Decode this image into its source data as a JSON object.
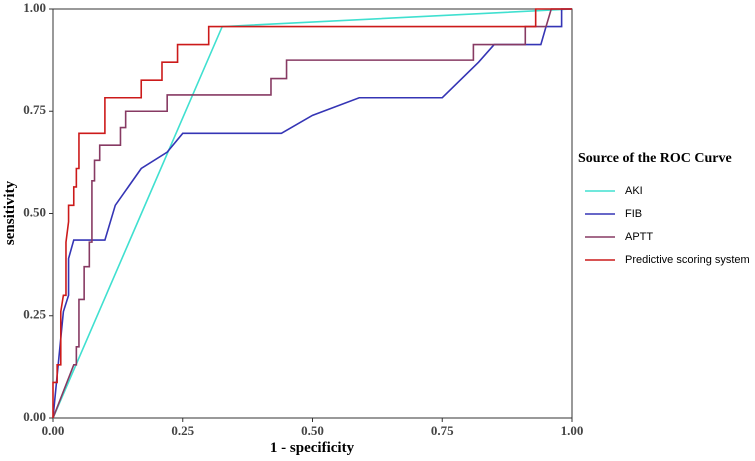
{
  "chart_data": {
    "type": "line",
    "xlabel": "1 - specificity",
    "ylabel": "sensitivity",
    "legend_title": "Source of the ROC Curve",
    "legend": "right",
    "grid": false,
    "xlim": [
      0,
      1
    ],
    "ylim": [
      0,
      1
    ],
    "xticks": [
      {
        "value": 0,
        "label": "0.00"
      },
      0.25,
      {
        "value": 0.5,
        "label": "0.50"
      },
      0.75,
      {
        "value": 1,
        "label": "1.00"
      }
    ],
    "yticks": [
      {
        "value": 0,
        "label": "0.00"
      },
      0.25,
      {
        "value": 0.5,
        "label": "0.50"
      },
      0.75,
      {
        "value": 1,
        "label": "1.00"
      }
    ],
    "series": [
      {
        "name": "AKI",
        "color": "#40e0d0",
        "x": [
          0,
          0.326,
          1
        ],
        "values": [
          0,
          0.957,
          1
        ]
      },
      {
        "name": "FIB",
        "color": "#3535b5",
        "x": [
          0,
          0.01,
          0.02,
          0.03,
          0.03,
          0.04,
          0.1,
          0.12,
          0.17,
          0.22,
          0.25,
          0.44,
          0.5,
          0.59,
          0.75,
          0.82,
          0.85,
          0.94,
          0.95,
          0.98,
          0.98,
          1
        ],
        "values": [
          0,
          0.13,
          0.26,
          0.3,
          0.39,
          0.435,
          0.435,
          0.52,
          0.61,
          0.65,
          0.696,
          0.696,
          0.74,
          0.783,
          0.783,
          0.87,
          0.913,
          0.913,
          0.957,
          0.957,
          1,
          1
        ]
      },
      {
        "name": "APTT",
        "color": "#873a63",
        "x": [
          0,
          0.04,
          0.045,
          0.045,
          0.05,
          0.05,
          0.06,
          0.06,
          0.07,
          0.07,
          0.075,
          0.075,
          0.08,
          0.08,
          0.09,
          0.09,
          0.13,
          0.13,
          0.14,
          0.14,
          0.22,
          0.22,
          0.42,
          0.42,
          0.45,
          0.45,
          0.81,
          0.81,
          0.91,
          0.91,
          0.95,
          0.96,
          1
        ],
        "values": [
          0,
          0.13,
          0.13,
          0.174,
          0.174,
          0.29,
          0.29,
          0.37,
          0.37,
          0.43,
          0.43,
          0.58,
          0.58,
          0.63,
          0.63,
          0.667,
          0.667,
          0.71,
          0.71,
          0.75,
          0.75,
          0.79,
          0.79,
          0.83,
          0.83,
          0.875,
          0.875,
          0.913,
          0.913,
          0.957,
          0.957,
          1,
          1
        ]
      },
      {
        "name": "Predictive scoring system",
        "color": "#cc1a1a",
        "x": [
          0,
          0,
          0.008,
          0.008,
          0.015,
          0.015,
          0.02,
          0.025,
          0.025,
          0.03,
          0.03,
          0.04,
          0.04,
          0.045,
          0.045,
          0.05,
          0.05,
          0.1,
          0.1,
          0.17,
          0.17,
          0.21,
          0.21,
          0.24,
          0.24,
          0.3,
          0.3,
          0.93,
          0.93,
          1
        ],
        "values": [
          0,
          0.087,
          0.087,
          0.13,
          0.13,
          0.26,
          0.3,
          0.3,
          0.43,
          0.48,
          0.52,
          0.52,
          0.565,
          0.565,
          0.61,
          0.61,
          0.696,
          0.696,
          0.783,
          0.783,
          0.826,
          0.826,
          0.87,
          0.87,
          0.913,
          0.913,
          0.957,
          0.957,
          1,
          1
        ]
      }
    ]
  }
}
